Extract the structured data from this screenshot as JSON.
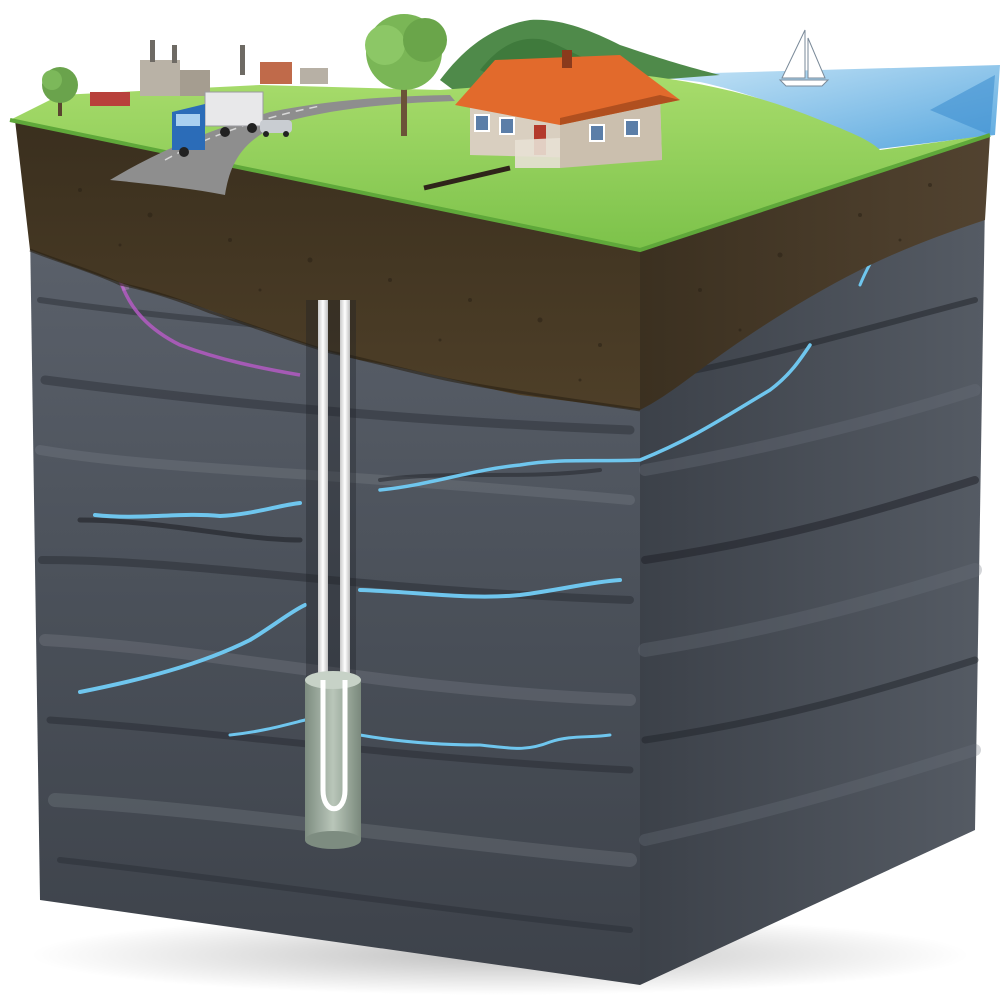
{
  "illustration": {
    "labels": [],
    "layers": [
      "surface",
      "soil",
      "bedrock"
    ],
    "colors": {
      "sky": "#ffffff",
      "grass": "#8ccf55",
      "grass_dark": "#5fa83a",
      "road": "#8e8e8e",
      "soil": "#4a3b26",
      "soil_dark": "#2c2416",
      "rock_front": "#4f5560",
      "rock_side": "#3a3f48",
      "rock_light": "#8b919a",
      "water": "#6fc6ee",
      "water_deep": "#2b87c8",
      "sea": "#9dcff0",
      "roof": "#e26a2c",
      "house_wall": "#d9cfc0",
      "pipe": "#f0f0f0",
      "collector": "#9aa99c",
      "contamination": "#b45bc3",
      "truck_cab": "#2b6cb8"
    },
    "icons": [
      "house-icon",
      "factory-icon",
      "truck-icon",
      "car-icon",
      "tree-icon",
      "sailboat-icon",
      "borehole-icon"
    ]
  }
}
